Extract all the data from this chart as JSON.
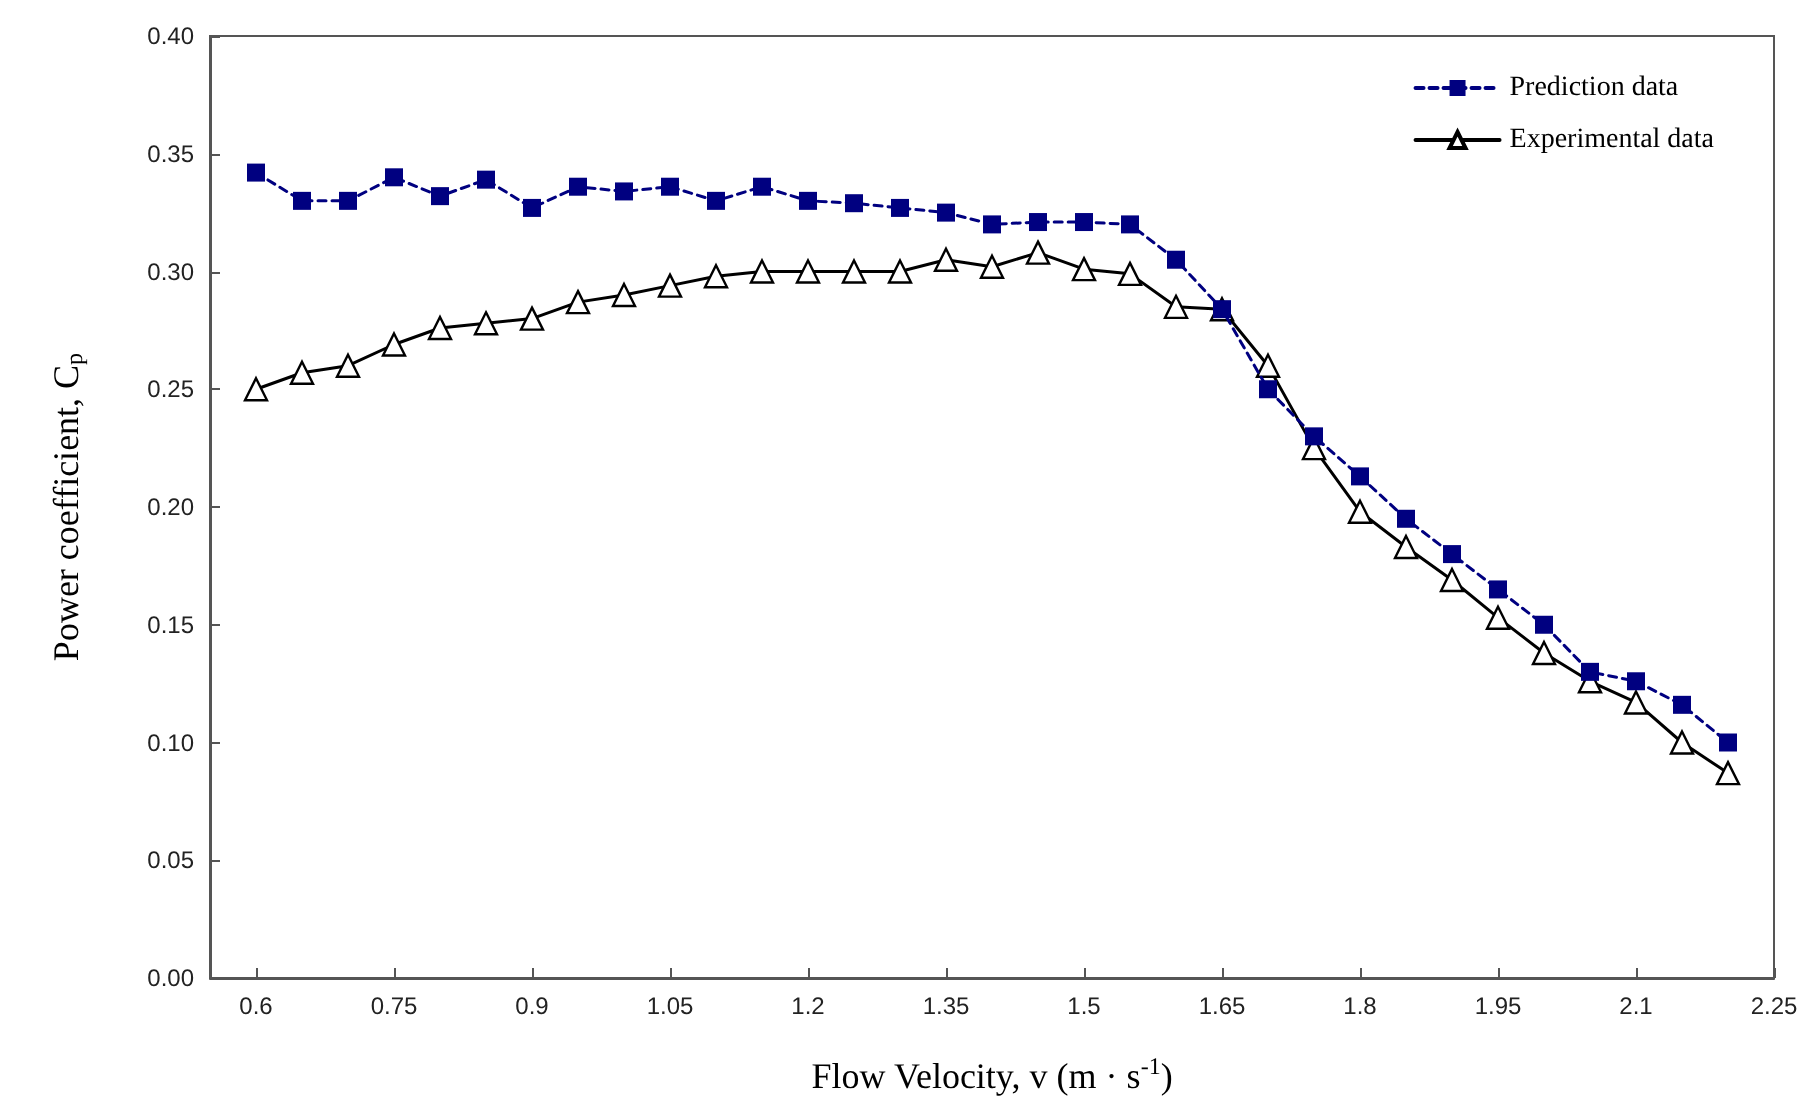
{
  "chart_data": {
    "type": "line",
    "xlabel": "Flow Velocity, v (m · s$^{-1}$)",
    "ylabel": "Power coefficient, C$_{p}$",
    "x": [
      0.6,
      0.65,
      0.7,
      0.75,
      0.8,
      0.85,
      0.9,
      0.95,
      1.0,
      1.05,
      1.1,
      1.15,
      1.2,
      1.25,
      1.3,
      1.35,
      1.4,
      1.45,
      1.5,
      1.55,
      1.6,
      1.65,
      1.7,
      1.75,
      1.8,
      1.85,
      1.9,
      1.95,
      2.0,
      2.05,
      2.1,
      2.15,
      2.2
    ],
    "series": [
      {
        "name": "Prediction data",
        "color": "#000080",
        "marker": "square",
        "line_style": "dashed",
        "values": [
          0.342,
          0.33,
          0.33,
          0.34,
          0.332,
          0.339,
          0.327,
          0.336,
          0.334,
          0.336,
          0.33,
          0.336,
          0.33,
          0.329,
          0.327,
          0.325,
          0.32,
          0.321,
          0.321,
          0.32,
          0.305,
          0.284,
          0.25,
          0.23,
          0.213,
          0.195,
          0.18,
          0.165,
          0.15,
          0.13,
          0.126,
          0.116,
          0.1
        ]
      },
      {
        "name": "Experimental data",
        "color": "#000000",
        "marker": "triangle",
        "line_style": "solid",
        "values": [
          0.25,
          0.257,
          0.26,
          0.269,
          0.276,
          0.278,
          0.28,
          0.287,
          0.29,
          0.294,
          0.298,
          0.3,
          0.3,
          0.3,
          0.3,
          0.305,
          0.302,
          0.308,
          0.301,
          0.299,
          0.285,
          0.284,
          0.26,
          0.225,
          0.198,
          0.183,
          0.169,
          0.153,
          0.138,
          0.126,
          0.117,
          0.1,
          0.087
        ]
      }
    ],
    "xlim": [
      0.55,
      2.25
    ],
    "xticks": [
      0.6,
      0.75,
      0.9,
      1.05,
      1.2,
      1.35,
      1.5,
      1.65,
      1.8,
      1.95,
      2.1,
      2.25
    ],
    "ylim": [
      0,
      0.4
    ],
    "yticks": [
      {
        "value": 0,
        "label": "0.00"
      },
      {
        "value": 0.05,
        "label": "0.05"
      },
      {
        "value": 0.1,
        "label": "0.10"
      },
      {
        "value": 0.15,
        "label": "0.15"
      },
      {
        "value": 0.2,
        "label": "0.20"
      },
      {
        "value": 0.25,
        "label": "0.25"
      },
      {
        "value": 0.3,
        "label": "0.30"
      },
      {
        "value": 0.35,
        "label": "0.35"
      },
      {
        "value": 0.4,
        "label": "0.40"
      }
    ],
    "grid": false,
    "legend": "top right"
  }
}
